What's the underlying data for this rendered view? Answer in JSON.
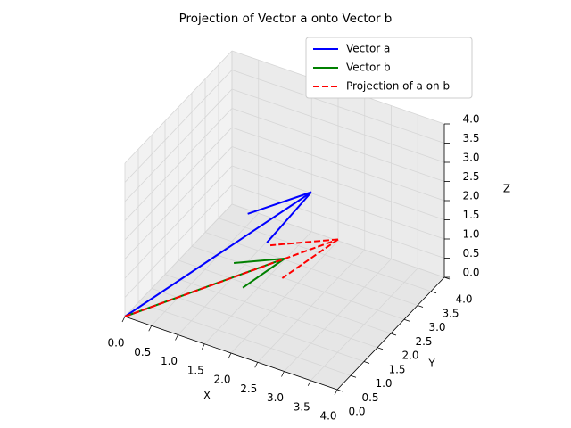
{
  "chart_data": {
    "type": "quiver3d",
    "title": "Projection of Vector a onto Vector b",
    "xlabel": "X",
    "ylabel": "Y",
    "zlabel": "Z",
    "series": [
      {
        "name": "Vector a",
        "color": "#0000ff",
        "linestyle": "solid",
        "values": [
          2,
          3,
          2
        ]
      },
      {
        "name": "Vector b",
        "color": "#008000",
        "linestyle": "solid",
        "values": [
          2,
          2,
          1
        ]
      },
      {
        "name": "Projection of a on b",
        "color": "#ff0000",
        "linestyle": "dashed",
        "values": [
          2.67,
          2.67,
          1.33
        ]
      }
    ],
    "xlim": [
      0,
      4
    ],
    "ylim": [
      0,
      4
    ],
    "zlim": [
      0,
      4
    ],
    "xticks": [
      {
        "value": 0,
        "label": "0.0"
      },
      {
        "value": 0.5,
        "label": "0.5"
      },
      {
        "value": 1,
        "label": "1.0"
      },
      {
        "value": 1.5,
        "label": "1.5"
      },
      {
        "value": 2,
        "label": "2.0"
      },
      {
        "value": 2.5,
        "label": "2.5"
      },
      {
        "value": 3,
        "label": "3.0"
      },
      {
        "value": 3.5,
        "label": "3.5"
      },
      {
        "value": 4,
        "label": "4.0"
      }
    ],
    "yticks": [
      {
        "value": 0,
        "label": "0.0"
      },
      {
        "value": 0.5,
        "label": "0.5"
      },
      {
        "value": 1,
        "label": "1.0"
      },
      {
        "value": 1.5,
        "label": "1.5"
      },
      {
        "value": 2,
        "label": "2.0"
      },
      {
        "value": 2.5,
        "label": "2.5"
      },
      {
        "value": 3,
        "label": "3.0"
      },
      {
        "value": 3.5,
        "label": "3.5"
      },
      {
        "value": 4,
        "label": "4.0"
      }
    ],
    "zticks": [
      {
        "value": 0,
        "label": "0.0"
      },
      {
        "value": 0.5,
        "label": "0.5"
      },
      {
        "value": 1,
        "label": "1.0"
      },
      {
        "value": 1.5,
        "label": "1.5"
      },
      {
        "value": 2,
        "label": "2.0"
      },
      {
        "value": 2.5,
        "label": "2.5"
      },
      {
        "value": 3,
        "label": "3.0"
      },
      {
        "value": 3.5,
        "label": "3.5"
      },
      {
        "value": 4,
        "label": "4.0"
      }
    ],
    "grid": true,
    "legend": "upper right"
  }
}
